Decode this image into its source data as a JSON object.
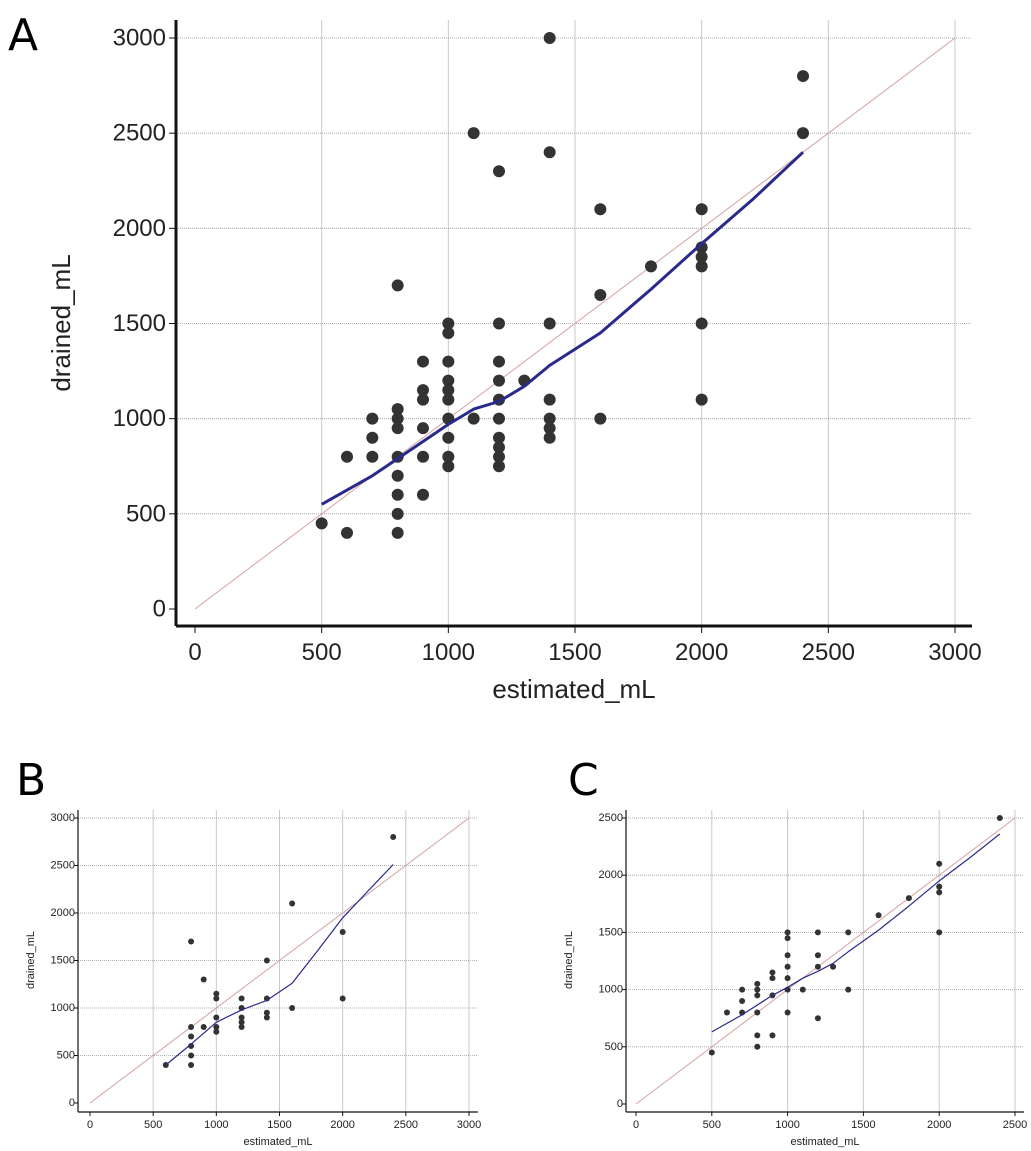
{
  "chart_data": [
    {
      "panel": "A",
      "type": "scatter",
      "xlabel": "estimated_mL",
      "ylabel": "drained_mL",
      "xlim": [
        0,
        3000
      ],
      "ylim": [
        0,
        3000
      ],
      "xticks": [
        0,
        500,
        1000,
        1500,
        2000,
        2500,
        3000
      ],
      "yticks": [
        0,
        500,
        1000,
        1500,
        2000,
        2500,
        3000
      ],
      "grid": true,
      "identity_line": {
        "from": [
          0,
          0
        ],
        "to": [
          3000,
          3000
        ],
        "color": "#d4a0a0"
      },
      "points": [
        [
          500,
          450
        ],
        [
          600,
          400
        ],
        [
          600,
          800
        ],
        [
          700,
          1000
        ],
        [
          700,
          900
        ],
        [
          700,
          800
        ],
        [
          800,
          1700
        ],
        [
          800,
          1050
        ],
        [
          800,
          1000
        ],
        [
          800,
          950
        ],
        [
          800,
          800
        ],
        [
          800,
          700
        ],
        [
          800,
          600
        ],
        [
          800,
          500
        ],
        [
          800,
          400
        ],
        [
          900,
          1300
        ],
        [
          900,
          1150
        ],
        [
          900,
          1100
        ],
        [
          900,
          950
        ],
        [
          900,
          800
        ],
        [
          900,
          600
        ],
        [
          1000,
          1500
        ],
        [
          1000,
          1450
        ],
        [
          1000,
          1300
        ],
        [
          1000,
          1200
        ],
        [
          1000,
          1150
        ],
        [
          1000,
          1100
        ],
        [
          1000,
          1000
        ],
        [
          1000,
          900
        ],
        [
          1000,
          800
        ],
        [
          1000,
          750
        ],
        [
          1100,
          2500
        ],
        [
          1100,
          1000
        ],
        [
          1200,
          2300
        ],
        [
          1200,
          1500
        ],
        [
          1200,
          1300
        ],
        [
          1200,
          1200
        ],
        [
          1200,
          1100
        ],
        [
          1200,
          1000
        ],
        [
          1200,
          900
        ],
        [
          1200,
          850
        ],
        [
          1200,
          800
        ],
        [
          1200,
          750
        ],
        [
          1300,
          1200
        ],
        [
          1400,
          3000
        ],
        [
          1400,
          2400
        ],
        [
          1400,
          1500
        ],
        [
          1400,
          1100
        ],
        [
          1400,
          1000
        ],
        [
          1400,
          950
        ],
        [
          1400,
          900
        ],
        [
          1600,
          2100
        ],
        [
          1600,
          1650
        ],
        [
          1600,
          1000
        ],
        [
          1800,
          1800
        ],
        [
          2000,
          2100
        ],
        [
          2000,
          1900
        ],
        [
          2000,
          1850
        ],
        [
          2000,
          1800
        ],
        [
          2000,
          1500
        ],
        [
          2000,
          1100
        ],
        [
          2400,
          2800
        ],
        [
          2400,
          2500
        ]
      ],
      "fit_line": [
        [
          500,
          550
        ],
        [
          700,
          700
        ],
        [
          900,
          880
        ],
        [
          1000,
          970
        ],
        [
          1100,
          1050
        ],
        [
          1200,
          1090
        ],
        [
          1300,
          1170
        ],
        [
          1400,
          1280
        ],
        [
          1600,
          1450
        ],
        [
          1800,
          1680
        ],
        [
          2000,
          1920
        ],
        [
          2200,
          2150
        ],
        [
          2400,
          2400
        ]
      ],
      "point_color": "#333333",
      "fit_color": "#2a2a8c"
    },
    {
      "panel": "B",
      "type": "scatter",
      "xlabel": "estimated_mL",
      "ylabel": "drained_mL",
      "xlim": [
        0,
        3000
      ],
      "ylim": [
        0,
        3000
      ],
      "xticks": [
        0,
        500,
        1000,
        1500,
        2000,
        2500,
        3000
      ],
      "yticks": [
        0,
        500,
        1000,
        1500,
        2000,
        2500,
        3000
      ],
      "grid": true,
      "identity_line": {
        "from": [
          0,
          0
        ],
        "to": [
          3000,
          3000
        ],
        "color": "#d4a0a0"
      },
      "points": [
        [
          600,
          400
        ],
        [
          800,
          1700
        ],
        [
          800,
          800
        ],
        [
          800,
          700
        ],
        [
          800,
          600
        ],
        [
          800,
          500
        ],
        [
          800,
          400
        ],
        [
          900,
          1300
        ],
        [
          900,
          800
        ],
        [
          1000,
          1150
        ],
        [
          1000,
          1100
        ],
        [
          1000,
          900
        ],
        [
          1000,
          800
        ],
        [
          1000,
          750
        ],
        [
          1200,
          1100
        ],
        [
          1200,
          1000
        ],
        [
          1200,
          900
        ],
        [
          1200,
          850
        ],
        [
          1200,
          800
        ],
        [
          1400,
          1500
        ],
        [
          1400,
          1100
        ],
        [
          1400,
          950
        ],
        [
          1400,
          900
        ],
        [
          1600,
          2100
        ],
        [
          1600,
          1000
        ],
        [
          2000,
          1800
        ],
        [
          2000,
          1100
        ],
        [
          2400,
          2800
        ]
      ],
      "fit_line": [
        [
          600,
          400
        ],
        [
          800,
          620
        ],
        [
          1000,
          850
        ],
        [
          1200,
          980
        ],
        [
          1400,
          1080
        ],
        [
          1600,
          1260
        ],
        [
          1800,
          1600
        ],
        [
          2000,
          1950
        ],
        [
          2200,
          2230
        ],
        [
          2400,
          2510
        ]
      ],
      "point_color": "#333333",
      "fit_color": "#2a2a8c"
    },
    {
      "panel": "C",
      "type": "scatter",
      "xlabel": "estimated_mL",
      "ylabel": "drained_mL",
      "xlim": [
        0,
        2500
      ],
      "ylim": [
        0,
        2500
      ],
      "xticks": [
        0,
        500,
        1000,
        1500,
        2000,
        2500
      ],
      "yticks": [
        0,
        500,
        1000,
        1500,
        2000,
        2500
      ],
      "grid": true,
      "identity_line": {
        "from": [
          0,
          0
        ],
        "to": [
          2500,
          2500
        ],
        "color": "#d4a0a0"
      },
      "points": [
        [
          500,
          450
        ],
        [
          600,
          800
        ],
        [
          700,
          1000
        ],
        [
          700,
          900
        ],
        [
          700,
          800
        ],
        [
          800,
          1050
        ],
        [
          800,
          1000
        ],
        [
          800,
          950
        ],
        [
          800,
          800
        ],
        [
          800,
          600
        ],
        [
          800,
          500
        ],
        [
          900,
          1150
        ],
        [
          900,
          1100
        ],
        [
          900,
          950
        ],
        [
          900,
          600
        ],
        [
          1000,
          1500
        ],
        [
          1000,
          1450
        ],
        [
          1000,
          1300
        ],
        [
          1000,
          1200
        ],
        [
          1000,
          1100
        ],
        [
          1000,
          1000
        ],
        [
          1000,
          800
        ],
        [
          1100,
          1000
        ],
        [
          1200,
          1500
        ],
        [
          1200,
          1300
        ],
        [
          1200,
          1200
        ],
        [
          1200,
          750
        ],
        [
          1300,
          1200
        ],
        [
          1400,
          1500
        ],
        [
          1400,
          1000
        ],
        [
          1600,
          1650
        ],
        [
          1800,
          1800
        ],
        [
          2000,
          2100
        ],
        [
          2000,
          1900
        ],
        [
          2000,
          1850
        ],
        [
          2000,
          1500
        ],
        [
          2400,
          2500
        ]
      ],
      "fit_line": [
        [
          500,
          630
        ],
        [
          700,
          780
        ],
        [
          900,
          950
        ],
        [
          1000,
          1020
        ],
        [
          1100,
          1100
        ],
        [
          1200,
          1160
        ],
        [
          1300,
          1230
        ],
        [
          1400,
          1330
        ],
        [
          1600,
          1520
        ],
        [
          1800,
          1730
        ],
        [
          2000,
          1950
        ],
        [
          2200,
          2150
        ],
        [
          2400,
          2360
        ]
      ],
      "point_color": "#333333",
      "fit_color": "#2a2a8c"
    }
  ]
}
